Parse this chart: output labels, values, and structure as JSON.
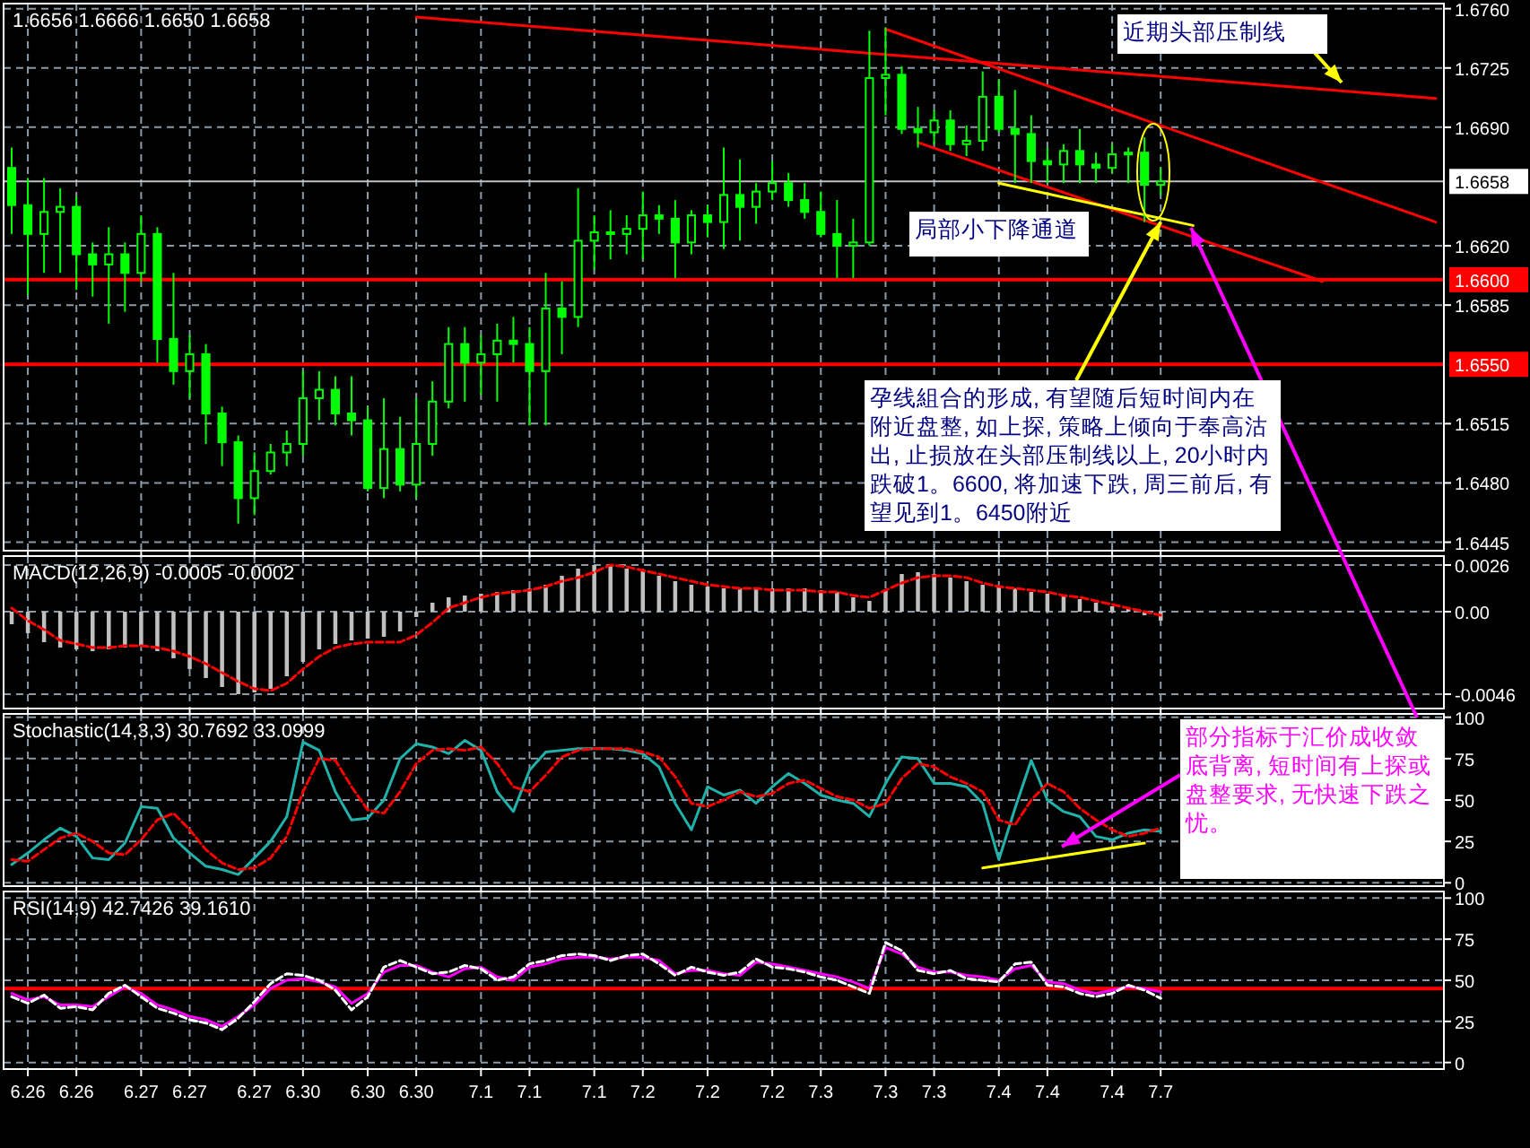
{
  "chart_data": [
    {
      "type": "candlestick",
      "title": "1.6656 1.6666 1.6650 1.6658",
      "color": "#00ff00",
      "tick_labels": "y",
      "grid": true,
      "categories": [
        null,
        "6.26",
        null,
        null,
        "6.26",
        null,
        null,
        null,
        "6.27",
        null,
        null,
        "6.27",
        null,
        null,
        null,
        "6.27",
        null,
        null,
        "6.30",
        null,
        null,
        null,
        "6.30",
        null,
        null,
        "6.30",
        null,
        null,
        null,
        "7.1",
        null,
        null,
        "7.1",
        null,
        null,
        null,
        "7.1",
        null,
        null,
        "7.2",
        null,
        null,
        null,
        "7.2",
        null,
        null,
        null,
        "7.2",
        null,
        null,
        "7.3",
        null,
        null,
        null,
        "7.3",
        null,
        null,
        "7.3",
        null,
        null,
        null,
        "7.4",
        null,
        null,
        "7.4",
        null,
        null,
        null,
        "7.4",
        null,
        null,
        "7.7",
        null,
        null,
        null,
        null,
        null,
        null,
        null,
        null,
        null,
        null,
        null,
        null,
        null,
        null,
        null,
        null,
        null
      ],
      "ohlc": [
        [
          1.6666,
          1.6678,
          1.6627,
          1.6644
        ],
        [
          1.6644,
          1.666,
          1.6591,
          1.6627
        ],
        [
          1.6627,
          1.666,
          1.6604,
          1.664
        ],
        [
          1.664,
          1.6654,
          1.6604,
          1.6643
        ],
        [
          1.6643,
          1.6649,
          1.6594,
          1.6615
        ],
        [
          1.6615,
          1.6622,
          1.659,
          1.6609
        ],
        [
          1.6609,
          1.6631,
          1.6574,
          1.6615
        ],
        [
          1.6615,
          1.6622,
          1.6581,
          1.6604
        ],
        [
          1.6604,
          1.6638,
          1.6599,
          1.6627
        ],
        [
          1.6627,
          1.6631,
          1.6551,
          1.6565
        ],
        [
          1.6565,
          1.6604,
          1.6538,
          1.6546
        ],
        [
          1.6546,
          1.6567,
          1.653,
          1.6556
        ],
        [
          1.6556,
          1.6562,
          1.6503,
          1.6521
        ],
        [
          1.6521,
          1.6525,
          1.649,
          1.6504
        ],
        [
          1.6504,
          1.6508,
          1.6456,
          1.6471
        ],
        [
          1.6471,
          1.6498,
          1.6461,
          1.6487
        ],
        [
          1.6487,
          1.6503,
          1.6485,
          1.6498
        ],
        [
          1.6498,
          1.6511,
          1.649,
          1.6503
        ],
        [
          1.6503,
          1.6546,
          1.6496,
          1.653
        ],
        [
          1.653,
          1.6546,
          1.6517,
          1.6535
        ],
        [
          1.6535,
          1.6543,
          1.6514,
          1.6521
        ],
        [
          1.6521,
          1.6543,
          1.6508,
          1.6517
        ],
        [
          1.6517,
          1.6525,
          1.6475,
          1.6477
        ],
        [
          1.6477,
          1.653,
          1.6471,
          1.65
        ],
        [
          1.65,
          1.6519,
          1.6475,
          1.6479
        ],
        [
          1.6479,
          1.653,
          1.6471,
          1.6503
        ],
        [
          1.6503,
          1.654,
          1.6496,
          1.6528
        ],
        [
          1.6528,
          1.6572,
          1.6524,
          1.6562
        ],
        [
          1.6562,
          1.6572,
          1.6528,
          1.6551
        ],
        [
          1.6551,
          1.6567,
          1.6532,
          1.6556
        ],
        [
          1.6556,
          1.6574,
          1.6528,
          1.6564
        ],
        [
          1.6564,
          1.6578,
          1.6551,
          1.6562
        ],
        [
          1.6562,
          1.6572,
          1.6514,
          1.6546
        ],
        [
          1.6546,
          1.6604,
          1.6514,
          1.6583
        ],
        [
          1.6583,
          1.6599,
          1.6556,
          1.6578
        ],
        [
          1.6578,
          1.6654,
          1.6572,
          1.6623
        ],
        [
          1.6623,
          1.6638,
          1.6606,
          1.6628
        ],
        [
          1.6628,
          1.6641,
          1.6612,
          1.6627
        ],
        [
          1.6627,
          1.6638,
          1.6615,
          1.663
        ],
        [
          1.663,
          1.6652,
          1.6612,
          1.6638
        ],
        [
          1.6638,
          1.6644,
          1.6627,
          1.6636
        ],
        [
          1.6636,
          1.6647,
          1.6601,
          1.6622
        ],
        [
          1.6622,
          1.6641,
          1.6615,
          1.6638
        ],
        [
          1.6638,
          1.6644,
          1.6625,
          1.6634
        ],
        [
          1.6634,
          1.6678,
          1.6618,
          1.665
        ],
        [
          1.665,
          1.6671,
          1.6623,
          1.6643
        ],
        [
          1.6643,
          1.6657,
          1.6633,
          1.6652
        ],
        [
          1.6652,
          1.667,
          1.6647,
          1.6657
        ],
        [
          1.6657,
          1.6663,
          1.6643,
          1.6647
        ],
        [
          1.6647,
          1.6657,
          1.6636,
          1.664
        ],
        [
          1.664,
          1.6652,
          1.6625,
          1.6627
        ],
        [
          1.6627,
          1.6647,
          1.6601,
          1.662
        ],
        [
          1.662,
          1.6636,
          1.6601,
          1.6622
        ],
        [
          1.6622,
          1.6747,
          1.662,
          1.6719
        ],
        [
          1.6719,
          1.6749,
          1.6697,
          1.6721
        ],
        [
          1.6721,
          1.6726,
          1.6686,
          1.6689
        ],
        [
          1.6689,
          1.6702,
          1.6678,
          1.6687
        ],
        [
          1.6687,
          1.67,
          1.668,
          1.6694
        ],
        [
          1.6694,
          1.67,
          1.6676,
          1.668
        ],
        [
          1.668,
          1.6691,
          1.6673,
          1.6682
        ],
        [
          1.6682,
          1.6723,
          1.6676,
          1.6708
        ],
        [
          1.6708,
          1.6718,
          1.6687,
          1.6689
        ],
        [
          1.6689,
          1.6712,
          1.6657,
          1.6686
        ],
        [
          1.6686,
          1.6697,
          1.6657,
          1.667
        ],
        [
          1.667,
          1.6678,
          1.6657,
          1.6668
        ],
        [
          1.6668,
          1.668,
          1.6657,
          1.6676
        ],
        [
          1.6676,
          1.6689,
          1.6657,
          1.6668
        ],
        [
          1.6668,
          1.6675,
          1.6657,
          1.6666
        ],
        [
          1.6666,
          1.668,
          1.6663,
          1.6674
        ],
        [
          1.6674,
          1.6678,
          1.6657,
          1.6675
        ],
        [
          1.6675,
          1.6684,
          1.6634,
          1.6656
        ],
        [
          1.6656,
          1.6666,
          1.665,
          1.6658
        ],
        null,
        null,
        null,
        null,
        null,
        null,
        null,
        null,
        null,
        null,
        null,
        null,
        null,
        null,
        null,
        null,
        null
      ],
      "ylim": [
        1.644,
        1.6763
      ],
      "yticks": [
        1.6445,
        {
          "value": 1.648,
          "label": "1.6480"
        },
        1.6515,
        1.6585,
        {
          "value": 1.662,
          "label": "1.6620"
        },
        {
          "value": 1.669,
          "label": "1.6690"
        },
        1.6725,
        {
          "value": 1.676,
          "label": "1.6760"
        }
      ],
      "ref_lines": [
        {
          "axis": "y",
          "value": 1.6658,
          "label": "1.6658",
          "color": "#c0c0c0"
        },
        {
          "axis": "y",
          "value": 1.66,
          "label": "1.6600",
          "color": "#ff0000"
        },
        {
          "axis": "y",
          "value": 1.655,
          "label": "1.6550",
          "color": "#ff0000"
        }
      ],
      "series": [
        {
          "type": "line",
          "color": "#ff0000",
          "values": [
            null,
            null,
            null,
            null,
            null,
            null,
            null,
            null,
            null,
            null,
            null,
            null,
            null,
            null,
            null,
            null,
            null,
            null,
            null,
            null,
            null,
            null,
            null,
            null,
            null,
            1.6755,
            null,
            null,
            null,
            null,
            null,
            null,
            null,
            null,
            null,
            null,
            null,
            null,
            null,
            null,
            null,
            null,
            null,
            null,
            null,
            null,
            null,
            null,
            null,
            null,
            null,
            null,
            null,
            null,
            null,
            null,
            null,
            null,
            null,
            null,
            null,
            null,
            null,
            null,
            null,
            null,
            null,
            null,
            null,
            null,
            null,
            null,
            null,
            null,
            null,
            null,
            null,
            null,
            null,
            null,
            null,
            null,
            null,
            null,
            null,
            null,
            null,
            null,
            1.6707
          ]
        },
        {
          "type": "line",
          "color": "#ff0000",
          "values": [
            null,
            null,
            null,
            null,
            null,
            null,
            null,
            null,
            null,
            null,
            null,
            null,
            null,
            null,
            null,
            null,
            null,
            null,
            null,
            null,
            null,
            null,
            null,
            null,
            null,
            null,
            null,
            null,
            null,
            null,
            null,
            null,
            null,
            null,
            null,
            null,
            null,
            null,
            null,
            null,
            null,
            null,
            null,
            null,
            null,
            null,
            null,
            null,
            null,
            null,
            null,
            null,
            null,
            null,
            1.6748,
            null,
            null,
            null,
            null,
            null,
            null,
            null,
            null,
            null,
            null,
            null,
            null,
            null,
            null,
            null,
            null,
            null,
            null,
            null,
            null,
            null,
            null,
            null,
            null,
            null,
            null,
            null,
            null,
            null,
            null,
            null,
            null,
            null,
            1.6634
          ]
        },
        {
          "type": "line",
          "color": "#ff0000",
          "values": [
            null,
            null,
            null,
            null,
            null,
            null,
            null,
            null,
            null,
            null,
            null,
            null,
            null,
            null,
            null,
            null,
            null,
            null,
            null,
            null,
            null,
            null,
            null,
            null,
            null,
            null,
            null,
            null,
            null,
            null,
            null,
            null,
            null,
            null,
            null,
            null,
            null,
            null,
            null,
            null,
            null,
            null,
            null,
            null,
            null,
            null,
            null,
            null,
            null,
            null,
            null,
            null,
            null,
            null,
            null,
            null,
            1.6681,
            null,
            null,
            null,
            null,
            null,
            null,
            null,
            null,
            null,
            null,
            null,
            null,
            null,
            null,
            null,
            null,
            null,
            null,
            null,
            null,
            null,
            null,
            null,
            null,
            1.6599,
            null,
            null,
            null,
            null,
            null,
            null,
            null
          ]
        },
        {
          "type": "line",
          "color": "#ffff00",
          "values": [
            null,
            null,
            null,
            null,
            null,
            null,
            null,
            null,
            null,
            null,
            null,
            null,
            null,
            null,
            null,
            null,
            null,
            null,
            null,
            null,
            null,
            null,
            null,
            null,
            null,
            null,
            null,
            null,
            null,
            null,
            null,
            null,
            null,
            null,
            null,
            null,
            null,
            null,
            null,
            null,
            null,
            null,
            null,
            null,
            null,
            null,
            null,
            null,
            null,
            null,
            null,
            null,
            null,
            null,
            null,
            null,
            null,
            null,
            null,
            null,
            null,
            1.6657,
            null,
            null,
            null,
            null,
            null,
            null,
            null,
            null,
            null,
            null,
            null,
            1.6632,
            null,
            null,
            null,
            null,
            null,
            null,
            null,
            null,
            null,
            null,
            null,
            null,
            null,
            null,
            null
          ]
        }
      ],
      "annotations": [
        "近期头部压制线",
        "局部小下降通道",
        {
          "text": "孕线組合的形成, 有望随后短时间内在附近盘整, 如上探, 策略上倾向于奉高沽出, 止损放在头部压制线以上, 20小时内跌破1。6600, 将加速下跌, 周三前后, 有望见到1。6450附近",
          "x": "7.7",
          "y": 1.6634
        }
      ]
    },
    {
      "type": "bar",
      "title": "MACD(12,26,9) -0.0005 -0.0002",
      "tick_labels": "y",
      "grid": true,
      "categories": [
        null,
        "6.26",
        null,
        null,
        "6.26",
        null,
        null,
        null,
        "6.27",
        null,
        null,
        "6.27",
        null,
        null,
        null,
        "6.27",
        null,
        null,
        "6.30",
        null,
        null,
        null,
        "6.30",
        null,
        null,
        "6.30",
        null,
        null,
        null,
        "7.1",
        null,
        null,
        "7.1",
        null,
        null,
        null,
        "7.1",
        null,
        null,
        "7.2",
        null,
        null,
        null,
        "7.2",
        null,
        null,
        null,
        "7.2",
        null,
        null,
        "7.3",
        null,
        null,
        null,
        "7.3",
        null,
        null,
        "7.3",
        null,
        null,
        null,
        "7.4",
        null,
        null,
        "7.4",
        null,
        null,
        null,
        "7.4",
        null,
        null,
        "7.7",
        null,
        null,
        null,
        null,
        null,
        null,
        null,
        null,
        null,
        null,
        null,
        null,
        null,
        null,
        null,
        null,
        null
      ],
      "ylim": [
        -0.0054,
        0.0031
      ],
      "yticks": [
        0.0026,
        {
          "value": 0,
          "label": "0.00"
        },
        -0.0046
      ],
      "series": [
        {
          "color": "#c0c0c0",
          "values": [
            -0.0007,
            -0.0012,
            -0.0017,
            -0.002,
            -0.0021,
            -0.0022,
            -0.0021,
            -0.002,
            -0.0019,
            -0.0022,
            -0.0026,
            -0.0032,
            -0.0037,
            -0.0042,
            -0.0046,
            -0.0045,
            -0.0043,
            -0.0036,
            -0.0028,
            -0.0021,
            -0.0018,
            -0.0016,
            -0.0015,
            -0.0014,
            -0.0011,
            -0.0003,
            0.0005,
            0.0008,
            0.0009,
            0.001,
            0.0011,
            0.0012,
            0.0013,
            0.0015,
            0.002,
            0.0024,
            0.0026,
            0.0026,
            0.0024,
            0.0023,
            0.002,
            0.0017,
            0.0015,
            0.0014,
            0.0013,
            0.0013,
            0.0013,
            0.0013,
            0.0013,
            0.0013,
            0.0012,
            0.0011,
            0.0008,
            0.0006,
            0.0012,
            0.0021,
            0.0022,
            0.0021,
            0.0019,
            0.0017,
            0.0015,
            0.0014,
            0.0013,
            0.0011,
            0.001,
            0.0009,
            0.0007,
            0.0005,
            0.0003,
            0.0002,
            -0.0002,
            -0.0005,
            null,
            null,
            null,
            null,
            null,
            null,
            null,
            null,
            null,
            null,
            null,
            null,
            null,
            null,
            null,
            null,
            null
          ]
        },
        {
          "type": "line",
          "color": "#ff0000",
          "line_style": "dashed",
          "values": [
            0.0002,
            -0.0005,
            -0.001,
            -0.0016,
            -0.0018,
            -0.002,
            -0.002,
            -0.0019,
            -0.0019,
            -0.002,
            -0.0022,
            -0.0025,
            -0.0029,
            -0.0034,
            -0.0039,
            -0.0043,
            -0.0044,
            -0.004,
            -0.0032,
            -0.0025,
            -0.002,
            -0.0018,
            -0.0017,
            -0.0017,
            -0.0017,
            -0.0013,
            -0.0006,
            0.0002,
            0.0005,
            0.0008,
            0.001,
            0.0011,
            0.0012,
            0.0014,
            0.0017,
            0.0019,
            0.0022,
            0.0026,
            0.0025,
            0.0023,
            0.0021,
            0.0019,
            0.0017,
            0.0015,
            0.0014,
            0.0013,
            0.0013,
            0.0012,
            0.0012,
            0.0012,
            0.0011,
            0.0011,
            0.0009,
            0.0008,
            0.0012,
            0.0016,
            0.0019,
            0.002,
            0.002,
            0.0019,
            0.0016,
            0.0014,
            0.0013,
            0.0012,
            0.0011,
            0.0009,
            0.0008,
            0.0006,
            0.0004,
            0.0002,
            0.0,
            -0.0002,
            null,
            null,
            null,
            null,
            null,
            null,
            null,
            null,
            null,
            null,
            null,
            null,
            null,
            null,
            null,
            null,
            null
          ]
        }
      ]
    },
    {
      "type": "line",
      "title": "Stochastic(14,3,3) 30.7692 33.0999",
      "tick_labels": "y",
      "grid": true,
      "categories": [
        null,
        "6.26",
        null,
        null,
        "6.26",
        null,
        null,
        null,
        "6.27",
        null,
        null,
        "6.27",
        null,
        null,
        null,
        "6.27",
        null,
        null,
        "6.30",
        null,
        null,
        null,
        "6.30",
        null,
        null,
        "6.30",
        null,
        null,
        null,
        "7.1",
        null,
        null,
        "7.1",
        null,
        null,
        null,
        "7.1",
        null,
        null,
        "7.2",
        null,
        null,
        null,
        "7.2",
        null,
        null,
        null,
        "7.2",
        null,
        null,
        "7.3",
        null,
        null,
        null,
        "7.3",
        null,
        null,
        "7.3",
        null,
        null,
        null,
        "7.4",
        null,
        null,
        "7.4",
        null,
        null,
        null,
        "7.4",
        null,
        null,
        "7.7",
        null,
        null,
        null,
        null,
        null,
        null,
        null,
        null,
        null,
        null,
        null,
        null,
        null,
        null,
        null,
        null,
        null
      ],
      "ylim": [
        -2,
        102
      ],
      "yticks": [
        0,
        25,
        50,
        75,
        100
      ],
      "series": [
        {
          "color": "#20b2aa",
          "values": [
            11,
            18,
            26,
            33,
            28,
            15,
            14,
            24,
            46,
            45,
            27,
            18,
            10,
            8,
            5,
            15,
            25,
            40,
            85,
            80,
            55,
            38,
            39,
            50,
            75,
            84,
            82,
            78,
            86,
            80,
            55,
            43,
            68,
            79,
            80,
            81,
            81,
            81,
            80,
            78,
            70,
            48,
            32,
            58,
            53,
            56,
            48,
            58,
            66,
            60,
            53,
            50,
            48,
            40,
            60,
            76,
            75,
            60,
            60,
            58,
            48,
            14,
            45,
            74,
            50,
            43,
            40,
            28,
            26,
            30,
            32,
            31,
            null,
            null,
            null,
            null,
            null,
            null,
            null,
            null,
            null,
            null,
            null,
            null,
            null,
            null,
            null,
            null,
            null
          ]
        },
        {
          "color": "#ff0000",
          "line_style": "dashed",
          "values": [
            14,
            13,
            20,
            27,
            30,
            25,
            18,
            17,
            26,
            38,
            42,
            32,
            20,
            12,
            8,
            9,
            15,
            28,
            55,
            75,
            74,
            58,
            44,
            42,
            55,
            72,
            80,
            81,
            80,
            82,
            72,
            58,
            55,
            65,
            76,
            80,
            81,
            81,
            81,
            79,
            76,
            64,
            48,
            46,
            50,
            55,
            52,
            54,
            60,
            62,
            57,
            52,
            50,
            45,
            48,
            63,
            72,
            70,
            64,
            60,
            55,
            38,
            35,
            50,
            60,
            55,
            45,
            38,
            32,
            28,
            30,
            33,
            null,
            null,
            null,
            null,
            null,
            null,
            null,
            null,
            null,
            null,
            null,
            null,
            null,
            null,
            null,
            null,
            null
          ]
        },
        {
          "color": "#ffff00",
          "values": [
            null,
            null,
            null,
            null,
            null,
            null,
            null,
            null,
            null,
            null,
            null,
            null,
            null,
            null,
            null,
            null,
            null,
            null,
            null,
            null,
            null,
            null,
            null,
            null,
            null,
            null,
            null,
            null,
            null,
            null,
            null,
            null,
            null,
            null,
            null,
            null,
            null,
            null,
            null,
            null,
            null,
            null,
            null,
            null,
            null,
            null,
            null,
            null,
            null,
            null,
            null,
            null,
            null,
            null,
            null,
            null,
            null,
            null,
            null,
            null,
            9,
            null,
            null,
            null,
            null,
            null,
            null,
            null,
            null,
            null,
            24,
            null,
            null,
            null,
            null,
            null,
            null,
            null,
            null,
            null,
            null,
            null,
            null,
            null,
            null,
            null,
            null,
            null,
            null
          ]
        }
      ],
      "annotations": [
        "部分指标于汇价成收敛底背离, 短时间有上探或盘整要求, 无快速下跌之忧。"
      ]
    },
    {
      "type": "line",
      "title": "RSI(14,9) 42.7426 39.1610",
      "grid": true,
      "categories": [
        null,
        "6.26",
        null,
        null,
        "6.26",
        null,
        null,
        null,
        "6.27",
        null,
        null,
        "6.27",
        null,
        null,
        null,
        "6.27",
        null,
        null,
        "6.30",
        null,
        null,
        null,
        "6.30",
        null,
        null,
        "6.30",
        null,
        null,
        null,
        "7.1",
        null,
        null,
        "7.1",
        null,
        null,
        null,
        "7.1",
        null,
        null,
        "7.2",
        null,
        null,
        null,
        "7.2",
        null,
        null,
        null,
        "7.2",
        null,
        null,
        "7.3",
        null,
        null,
        null,
        "7.3",
        null,
        null,
        "7.3",
        null,
        null,
        null,
        "7.4",
        null,
        null,
        "7.4",
        null,
        null,
        null,
        "7.4",
        null,
        null,
        "7.7",
        null,
        null,
        null,
        null,
        null,
        null,
        null,
        null,
        null,
        null,
        null,
        null,
        null,
        null,
        null,
        null,
        null
      ],
      "ylim": [
        -4,
        104
      ],
      "yticks": [
        0,
        25,
        50,
        75,
        100
      ],
      "ref_lines": [
        {
          "axis": "y",
          "value": 45,
          "color": "#ff0000"
        }
      ],
      "series": [
        {
          "color": "#ff00ff",
          "values": [
            42,
            38,
            40,
            35,
            35,
            34,
            40,
            46,
            42,
            35,
            32,
            28,
            26,
            22,
            28,
            35,
            45,
            50,
            51,
            49,
            46,
            36,
            42,
            55,
            59,
            59,
            55,
            52,
            57,
            58,
            52,
            50,
            58,
            60,
            63,
            64,
            64,
            63,
            64,
            64,
            62,
            54,
            56,
            56,
            54,
            53,
            61,
            60,
            58,
            56,
            54,
            52,
            49,
            45,
            70,
            66,
            58,
            55,
            55,
            53,
            52,
            50,
            57,
            59,
            49,
            48,
            44,
            42,
            44,
            46,
            45,
            43,
            null,
            null,
            null,
            null,
            null,
            null,
            null,
            null,
            null,
            null,
            null,
            null,
            null,
            null,
            null,
            null,
            null
          ]
        },
        {
          "color": "#ffffff",
          "line_style": "dashed",
          "values": [
            40,
            36,
            41,
            33,
            34,
            32,
            42,
            47,
            40,
            33,
            30,
            26,
            24,
            20,
            27,
            37,
            48,
            54,
            53,
            50,
            44,
            32,
            40,
            58,
            62,
            58,
            54,
            55,
            59,
            57,
            50,
            52,
            60,
            62,
            65,
            66,
            65,
            62,
            65,
            66,
            60,
            53,
            58,
            55,
            53,
            55,
            63,
            58,
            57,
            55,
            52,
            50,
            46,
            42,
            73,
            68,
            56,
            54,
            56,
            51,
            50,
            49,
            60,
            61,
            47,
            46,
            42,
            40,
            42,
            47,
            44,
            39,
            null,
            null,
            null,
            null,
            null,
            null,
            null,
            null,
            null,
            null,
            null,
            null,
            null,
            null,
            null,
            null,
            null
          ]
        }
      ]
    }
  ]
}
